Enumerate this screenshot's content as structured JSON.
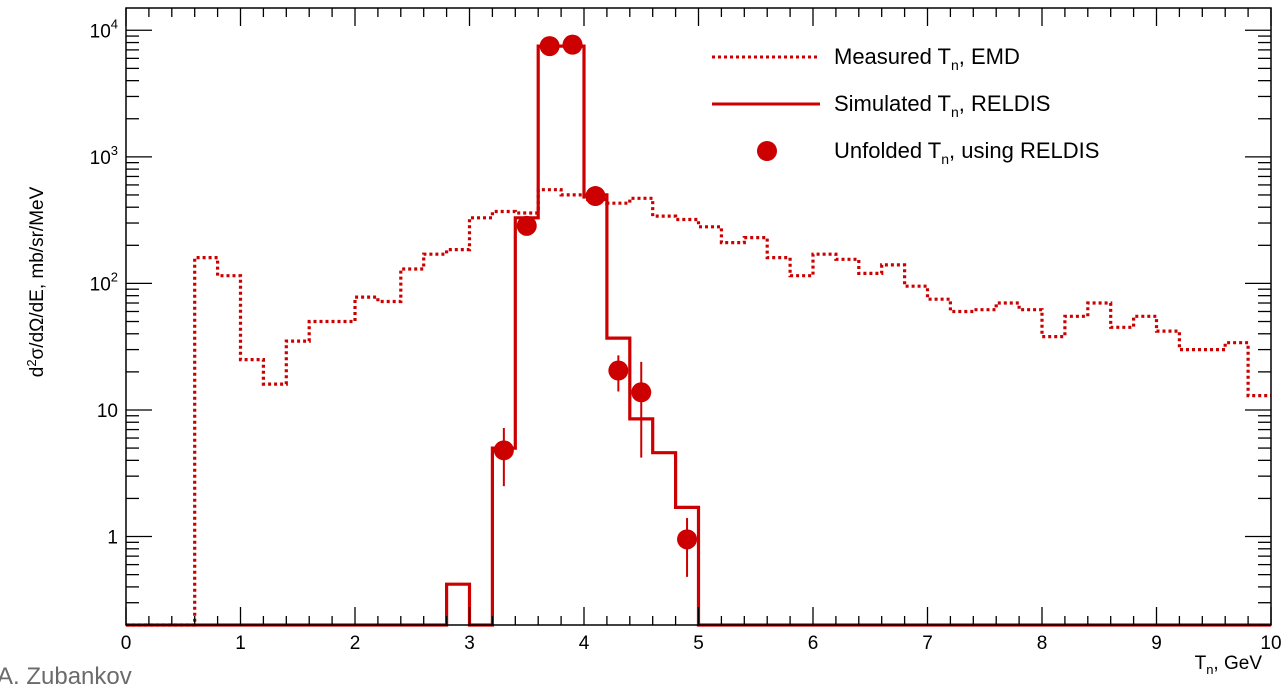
{
  "author": "A. Zubankov",
  "colors": {
    "series": "#cc0000",
    "axis": "#000000"
  },
  "chart_data": {
    "type": "line",
    "yscale": "log",
    "xlim": [
      0,
      10
    ],
    "ylim": [
      0.2,
      15000
    ],
    "xlabel": {
      "main": "T",
      "sub": "n",
      "rest": ", GeV"
    },
    "ylabel": {
      "sup": "2",
      "pre": "d",
      "rest": "σ/dΩ/dE, mb/sr/MeV"
    },
    "xticks": [
      {
        "v": 0,
        "label": "0"
      },
      {
        "v": 1,
        "label": "1"
      },
      {
        "v": 2,
        "label": "2"
      },
      {
        "v": 3,
        "label": "3"
      },
      {
        "v": 4,
        "label": "4"
      },
      {
        "v": 5,
        "label": "5"
      },
      {
        "v": 6,
        "label": "6"
      },
      {
        "v": 7,
        "label": "7"
      },
      {
        "v": 8,
        "label": "8"
      },
      {
        "v": 9,
        "label": "9"
      },
      {
        "v": 10,
        "label": "10"
      }
    ],
    "yticks": [
      {
        "v": 1,
        "base": "1",
        "exp": ""
      },
      {
        "v": 10,
        "base": "10",
        "exp": ""
      },
      {
        "v": 100,
        "base": "10",
        "exp": "2"
      },
      {
        "v": 1000,
        "base": "10",
        "exp": "3"
      },
      {
        "v": 10000,
        "base": "10",
        "exp": "4"
      }
    ],
    "legend": {
      "position": "top-right",
      "entries": [
        {
          "pre": "Measured T",
          "sub": "n",
          "post": ", EMD",
          "style": "dotted"
        },
        {
          "pre": "Simulated T",
          "sub": "n",
          "post": ", RELDIS",
          "style": "solid"
        },
        {
          "pre": "Unfolded T",
          "sub": "n",
          "post": ", using RELDIS",
          "style": "marker"
        }
      ]
    },
    "series": [
      {
        "name": "Measured Tn, EMD",
        "style": "dotted-step",
        "edges": [
          0,
          0.2,
          0.4,
          0.6,
          0.8,
          1.0,
          1.2,
          1.4,
          1.6,
          1.8,
          2.0,
          2.2,
          2.4,
          2.6,
          2.8,
          3.0,
          3.2,
          3.4,
          3.6,
          3.8,
          4.0,
          4.2,
          4.4,
          4.6,
          4.8,
          5.0,
          5.2,
          5.4,
          5.6,
          5.8,
          6.0,
          6.2,
          6.4,
          6.6,
          6.8,
          7.0,
          7.2,
          7.4,
          7.6,
          7.8,
          8.0,
          8.2,
          8.4,
          8.6,
          8.8,
          9.0,
          9.2,
          9.4,
          9.6,
          9.8,
          10.0
        ],
        "values": [
          0.2,
          0.2,
          0.2,
          160,
          115,
          25,
          16,
          35,
          50,
          50,
          78,
          72,
          130,
          170,
          185,
          330,
          370,
          360,
          550,
          500,
          460,
          430,
          470,
          340,
          320,
          280,
          210,
          230,
          160,
          115,
          170,
          155,
          120,
          140,
          95,
          75,
          60,
          62,
          70,
          62,
          38,
          55,
          70,
          45,
          55,
          42,
          30,
          30,
          34,
          13
        ]
      },
      {
        "name": "Simulated Tn, RELDIS",
        "style": "solid-step",
        "edges": [
          0,
          2.8,
          3.0,
          3.2,
          3.4,
          3.6,
          3.8,
          4.0,
          4.2,
          4.4,
          4.6,
          4.8,
          5.0,
          10.0
        ],
        "values": [
          0.2,
          0.42,
          0.2,
          5,
          330,
          7500,
          7500,
          500,
          37,
          8.5,
          4.6,
          1.7,
          0.2
        ]
      },
      {
        "name": "Unfolded Tn, using RELDIS",
        "style": "markers",
        "points": [
          {
            "x": 3.3,
            "y": 4.8,
            "lo": 2.5,
            "hi": 7.2
          },
          {
            "x": 3.5,
            "y": 285,
            "lo": 250,
            "hi": 320
          },
          {
            "x": 3.7,
            "y": 7500,
            "lo": 7200,
            "hi": 7800
          },
          {
            "x": 3.9,
            "y": 7700,
            "lo": 7400,
            "hi": 8000
          },
          {
            "x": 4.1,
            "y": 490,
            "lo": 455,
            "hi": 525
          },
          {
            "x": 4.3,
            "y": 20.5,
            "lo": 14,
            "hi": 27
          },
          {
            "x": 4.5,
            "y": 13.8,
            "lo": 4.2,
            "hi": 24
          },
          {
            "x": 4.9,
            "y": 0.95,
            "lo": 0.48,
            "hi": 1.4
          }
        ]
      }
    ]
  }
}
